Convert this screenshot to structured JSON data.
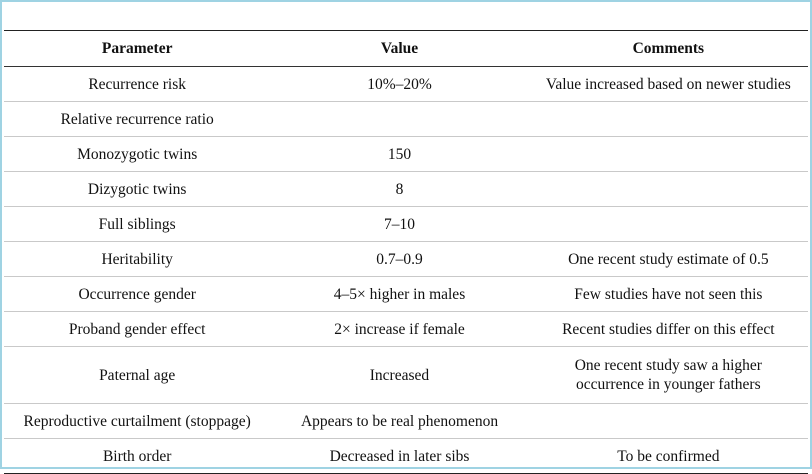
{
  "table": {
    "headers": [
      "Parameter",
      "Value",
      "Comments"
    ],
    "rows": [
      [
        "Recurrence risk",
        "10%–20%",
        "Value increased based on newer studies"
      ],
      [
        "Relative recurrence ratio",
        "",
        ""
      ],
      [
        "Monozygotic twins",
        "150",
        ""
      ],
      [
        "Dizygotic twins",
        "8",
        ""
      ],
      [
        "Full siblings",
        "7–10",
        ""
      ],
      [
        "Heritability",
        "0.7–0.9",
        "One recent study estimate of 0.5"
      ],
      [
        "Occurrence gender",
        "4–5× higher in males",
        "Few studies have not seen this"
      ],
      [
        "Proband gender effect",
        "2× increase if female",
        "Recent studies differ on this effect"
      ],
      [
        "Paternal age",
        "Increased",
        "One recent study saw a higher occurrence in younger fathers"
      ],
      [
        "Reproductive curtailment (stoppage)",
        "Appears to be real phenomenon",
        ""
      ],
      [
        "Birth order",
        "Decreased in later sibs",
        "To be confirmed"
      ]
    ]
  }
}
